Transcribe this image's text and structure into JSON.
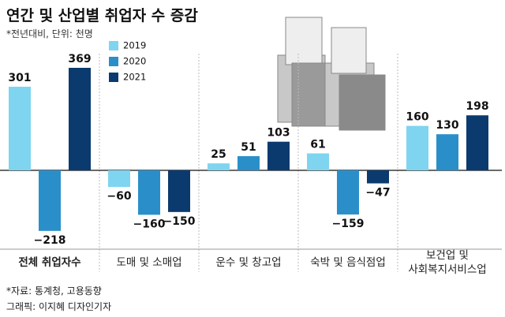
{
  "chart_data": {
    "type": "bar",
    "title": "연간 및 산업별 취업자 수 증감",
    "subtitle": "*전년대비, 단위: 천명",
    "categories": [
      "전체 취업자수",
      "도매 및 소매업",
      "운수 및 창고업",
      "숙박 및 음식점업",
      "보건업 및\n사회복지서비스업"
    ],
    "series": [
      {
        "name": "2019",
        "color": "#7fd4f0",
        "values": [
          301,
          -60,
          25,
          61,
          160
        ],
        "value_labels": [
          "301",
          "−60",
          "25",
          "61",
          "160"
        ]
      },
      {
        "name": "2020",
        "color": "#2a8fc9",
        "values": [
          -218,
          -160,
          51,
          -159,
          130
        ],
        "value_labels": [
          "−218",
          "−160",
          "51",
          "−159",
          "130"
        ]
      },
      {
        "name": "2021",
        "color": "#0b3a6e",
        "values": [
          369,
          -150,
          103,
          -47,
          198
        ],
        "value_labels": [
          "369",
          "−150",
          "103",
          "−47",
          "198"
        ]
      }
    ],
    "source": "*자료: 통계청, 고용동향",
    "credit": "그래픽: 이지혜 디자인기자"
  }
}
